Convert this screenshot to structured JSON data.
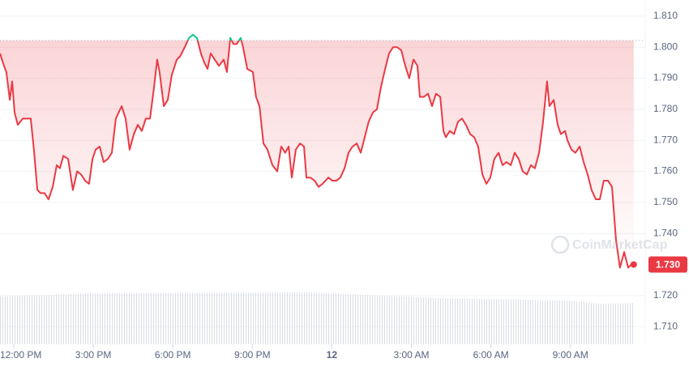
{
  "chart_data": {
    "type": "line",
    "watermark": "CoinMarketCap",
    "color": "#ea3943",
    "above_color": "#16c784",
    "reference_value": 1.8022,
    "current_price": {
      "value": 1.73,
      "label": "1.730"
    },
    "xlim": [
      -0.52,
      23.64
    ],
    "ylim": [
      1.7043,
      1.8152
    ],
    "xticks": [
      {
        "value": 0,
        "label": "12:00 PM"
      },
      {
        "value": 3,
        "label": "3:00 PM"
      },
      {
        "value": 6,
        "label": "6:00 PM"
      },
      {
        "value": 9,
        "label": "9:00 PM"
      },
      12,
      {
        "value": 15,
        "label": "3:00 AM"
      },
      {
        "value": 18,
        "label": "6:00 AM"
      },
      {
        "value": 21,
        "label": "9:00 AM"
      }
    ],
    "yticks": [
      {
        "value": 1.81,
        "label": "1.810"
      },
      {
        "value": 1.8,
        "label": "1.800"
      },
      {
        "value": 1.79,
        "label": "1.790"
      },
      {
        "value": 1.78,
        "label": "1.780"
      },
      {
        "value": 1.77,
        "label": "1.770"
      },
      {
        "value": 1.76,
        "label": "1.760"
      },
      {
        "value": 1.75,
        "label": "1.750"
      },
      {
        "value": 1.74,
        "label": "1.740"
      },
      {
        "value": 1.72,
        "label": "1.720"
      },
      {
        "value": 1.71,
        "label": "1.710"
      }
    ],
    "grid": true,
    "x": [
      -0.52,
      -0.37,
      -0.28,
      -0.15,
      -0.06,
      0.03,
      0.15,
      0.34,
      0.49,
      0.64,
      0.76,
      0.89,
      1.01,
      1.16,
      1.31,
      1.47,
      1.62,
      1.74,
      1.87,
      2.05,
      2.23,
      2.39,
      2.54,
      2.69,
      2.84,
      2.97,
      3.09,
      3.24,
      3.39,
      3.55,
      3.7,
      3.85,
      4.07,
      4.22,
      4.37,
      4.53,
      4.68,
      4.83,
      4.98,
      5.14,
      5.29,
      5.41,
      5.5,
      5.66,
      5.81,
      5.96,
      6.15,
      6.27,
      6.45,
      6.61,
      6.76,
      6.91,
      7.06,
      7.19,
      7.31,
      7.43,
      7.58,
      7.74,
      7.92,
      8.04,
      8.17,
      8.29,
      8.41,
      8.56,
      8.65,
      8.81,
      9.02,
      9.14,
      9.27,
      9.42,
      9.57,
      9.76,
      9.94,
      10.09,
      10.24,
      10.37,
      10.49,
      10.64,
      10.8,
      10.95,
      11.04,
      11.19,
      11.35,
      11.5,
      11.65,
      11.87,
      12.02,
      12.17,
      12.32,
      12.48,
      12.63,
      12.78,
      12.94,
      13.09,
      13.24,
      13.39,
      13.55,
      13.7,
      13.85,
      14.01,
      14.16,
      14.31,
      14.46,
      14.62,
      14.77,
      14.92,
      15.08,
      15.23,
      15.32,
      15.47,
      15.63,
      15.78,
      15.93,
      16.09,
      16.21,
      16.3,
      16.45,
      16.61,
      16.76,
      16.91,
      17.06,
      17.22,
      17.37,
      17.52,
      17.68,
      17.83,
      17.98,
      18.13,
      18.29,
      18.44,
      18.59,
      18.75,
      18.9,
      19.05,
      19.2,
      19.36,
      19.51,
      19.66,
      19.82,
      19.97,
      20.12,
      20.21,
      20.37,
      20.52,
      20.64,
      20.8,
      20.89,
      21.04,
      21.19,
      21.35,
      21.5,
      21.65,
      21.8,
      21.96,
      22.11,
      22.26,
      22.42,
      22.57,
      22.72,
      22.87,
      23.03,
      23.18,
      23.3,
      23.39
    ],
    "values": [
      1.798,
      1.794,
      1.792,
      1.783,
      1.789,
      1.779,
      1.775,
      1.777,
      1.777,
      1.777,
      1.767,
      1.754,
      1.753,
      1.753,
      1.751,
      1.755,
      1.762,
      1.761,
      1.765,
      1.764,
      1.754,
      1.76,
      1.759,
      1.757,
      1.756,
      1.764,
      1.767,
      1.768,
      1.763,
      1.764,
      1.766,
      1.777,
      1.781,
      1.777,
      1.767,
      1.772,
      1.775,
      1.773,
      1.777,
      1.777,
      1.787,
      1.796,
      1.792,
      1.781,
      1.783,
      1.791,
      1.796,
      1.797,
      1.8,
      1.803,
      1.804,
      1.803,
      1.798,
      1.795,
      1.793,
      1.798,
      1.796,
      1.794,
      1.796,
      1.792,
      1.803,
      1.801,
      1.801,
      1.803,
      1.8,
      1.793,
      1.792,
      1.784,
      1.781,
      1.769,
      1.767,
      1.762,
      1.76,
      1.768,
      1.766,
      1.768,
      1.758,
      1.767,
      1.769,
      1.768,
      1.758,
      1.758,
      1.757,
      1.755,
      1.756,
      1.758,
      1.757,
      1.757,
      1.758,
      1.761,
      1.766,
      1.768,
      1.769,
      1.766,
      1.771,
      1.776,
      1.779,
      1.78,
      1.787,
      1.793,
      1.798,
      1.8,
      1.8,
      1.799,
      1.794,
      1.79,
      1.796,
      1.794,
      1.784,
      1.784,
      1.785,
      1.781,
      1.785,
      1.784,
      1.773,
      1.771,
      1.773,
      1.772,
      1.776,
      1.777,
      1.775,
      1.772,
      1.771,
      1.768,
      1.759,
      1.756,
      1.758,
      1.764,
      1.766,
      1.762,
      1.763,
      1.762,
      1.766,
      1.764,
      1.76,
      1.759,
      1.762,
      1.761,
      1.766,
      1.776,
      1.789,
      1.781,
      1.783,
      1.775,
      1.772,
      1.773,
      1.77,
      1.767,
      1.766,
      1.768,
      1.763,
      1.759,
      1.754,
      1.751,
      1.751,
      1.757,
      1.757,
      1.755,
      1.738,
      1.729,
      1.734,
      1.729,
      1.73,
      1.73
    ]
  }
}
